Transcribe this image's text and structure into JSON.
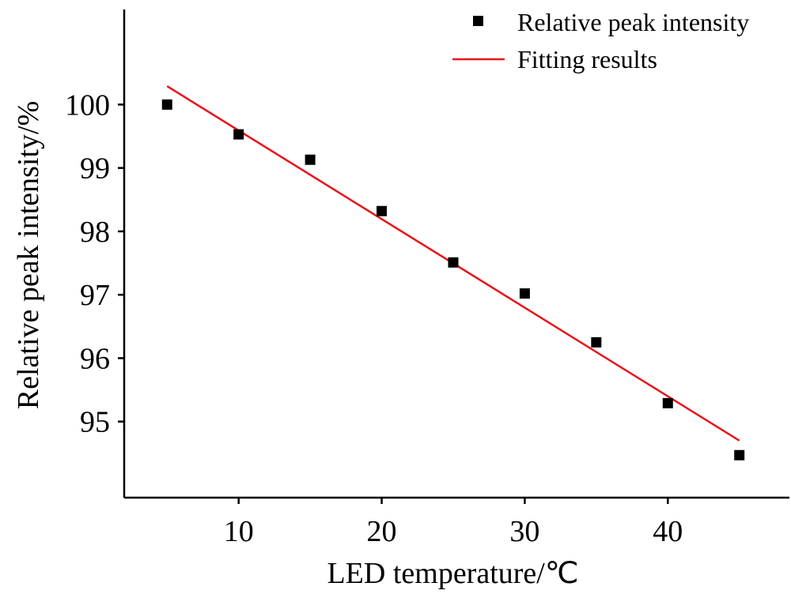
{
  "chart_data": {
    "type": "scatter",
    "xlabel": "LED temperature/℃",
    "ylabel": "Relative peak intensity/%",
    "xlim": [
      2,
      48.5
    ],
    "ylim": [
      93.8,
      101.5
    ],
    "xticks": [
      10,
      20,
      30,
      40
    ],
    "yticks": [
      95,
      96,
      97,
      98,
      99,
      100
    ],
    "grid": false,
    "legend_position": "top-right",
    "series": [
      {
        "name": "Relative peak intensity",
        "kind": "scatter",
        "marker": "square",
        "color": "#000000",
        "x": [
          5,
          10,
          15,
          20,
          25,
          30,
          35,
          40,
          45
        ],
        "y": [
          100.0,
          99.53,
          99.13,
          98.32,
          97.51,
          97.02,
          96.25,
          95.29,
          94.47
        ]
      },
      {
        "name": "Fitting results",
        "kind": "line",
        "color": "#e8141b",
        "x": [
          5,
          45
        ],
        "y": [
          100.29,
          94.7
        ]
      }
    ]
  }
}
